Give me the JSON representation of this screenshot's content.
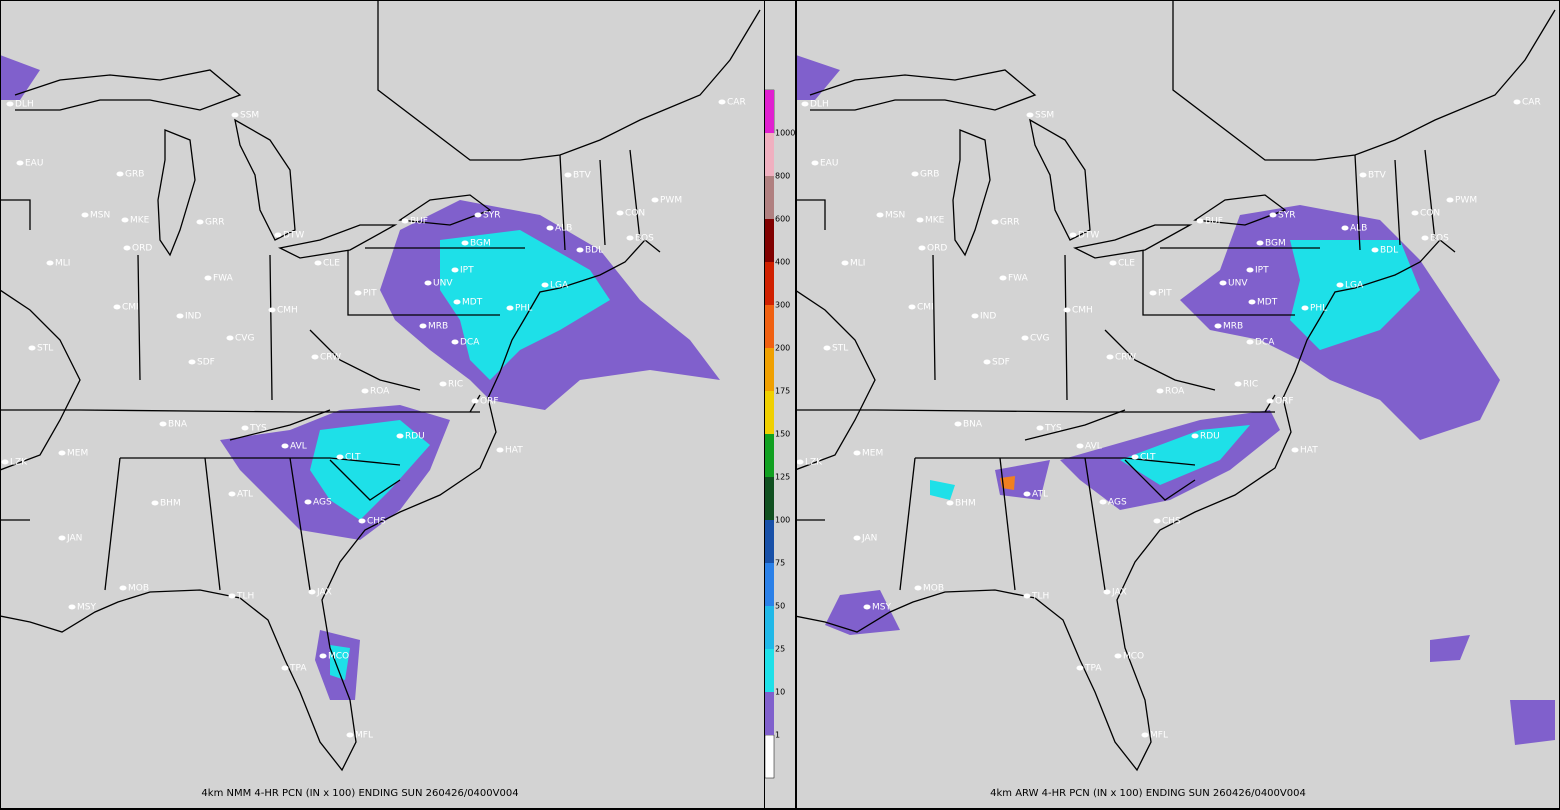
{
  "panels": [
    {
      "caption": "4km NMM 4-HR PCN (IN x 100) ENDING SUN 260426/0400V004"
    },
    {
      "caption": "4km ARW 4-HR PCN (IN x 100) ENDING SUN 260426/0400V004"
    }
  ],
  "stations": [
    "DLH",
    "CAR",
    "SSM",
    "EAU",
    "GRB",
    "BTV",
    "CON",
    "PWM",
    "MSN",
    "MKE",
    "GRR",
    "BUF",
    "SYR",
    "ALB",
    "BOS",
    "DTW",
    "ORD",
    "BGM",
    "BDL",
    "MLI",
    "CLE",
    "IPT",
    "FWA",
    "UNV",
    "LGA",
    "PIT",
    "MDT",
    "CMI",
    "CMH",
    "PHL",
    "IND",
    "MRB",
    "DCA",
    "CVG",
    "STL",
    "SDF",
    "CRW",
    "RIC",
    "ROA",
    "ORF",
    "BNA",
    "TYS",
    "RDU",
    "AVL",
    "HAT",
    "MEM",
    "LZK",
    "CLT",
    "ATL",
    "BHM",
    "AGS",
    "CHS",
    "JAN",
    "MOB",
    "MSY",
    "TLH",
    "JAX",
    "MCO",
    "TPA",
    "MFL"
  ],
  "colorbar": {
    "labels": [
      1,
      10,
      25,
      50,
      75,
      100,
      125,
      150,
      175,
      200,
      300,
      400,
      600,
      800,
      1000
    ]
  }
}
